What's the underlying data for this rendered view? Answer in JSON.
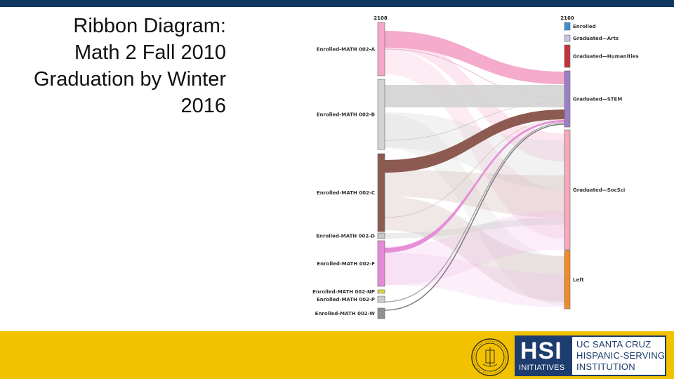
{
  "slide": {
    "title_lines": [
      "Ribbon Diagram:",
      "Math 2 Fall 2010",
      "Graduation by Winter",
      "2016"
    ]
  },
  "diagram": {
    "left_total": "2108",
    "right_total": "2160",
    "sources": [
      {
        "label": "Enrolled-MATH 002-A",
        "color": "#f4a7c8"
      },
      {
        "label": "Enrolled-MATH 002-B",
        "color": "#d3d3d3"
      },
      {
        "label": "Enrolled-MATH 002-C",
        "color": "#8c5a50"
      },
      {
        "label": "Enrolled-MATH 002-D",
        "color": "#c8c8c8"
      },
      {
        "label": "Enrolled-MATH 002-F",
        "color": "#e58ad6"
      },
      {
        "label": "Enrolled-MATH 002-NP",
        "color": "#d4d94a"
      },
      {
        "label": "Enrolled-MATH 002-P",
        "color": "#cccccc"
      },
      {
        "label": "Enrolled-MATH 002-W",
        "color": "#909090"
      }
    ],
    "targets": [
      {
        "label": "Enrolled",
        "color": "#3e8fd1"
      },
      {
        "label": "Graduated—Arts",
        "color": "#c7c4e6"
      },
      {
        "label": "Graduated—Humanities",
        "color": "#c4333b"
      },
      {
        "label": "Graduated—STEM",
        "color": "#9b80c8"
      },
      {
        "label": "Graduated—SocSci",
        "color": "#f5a9ba"
      },
      {
        "label": "Left",
        "color": "#f08a2a"
      }
    ]
  },
  "footer": {
    "hsi_mark": "HSI",
    "hsi_sub": "INITIATIVES",
    "org_lines": [
      "UC SANTA CRUZ",
      "HISPANIC-SERVING",
      "INSTITUTION"
    ],
    "seal_icon": "university-seal-icon"
  },
  "colors": {
    "top_bar": "#10375f",
    "footer": "#f2c200",
    "hsi_blue": "#1c3d6e"
  }
}
